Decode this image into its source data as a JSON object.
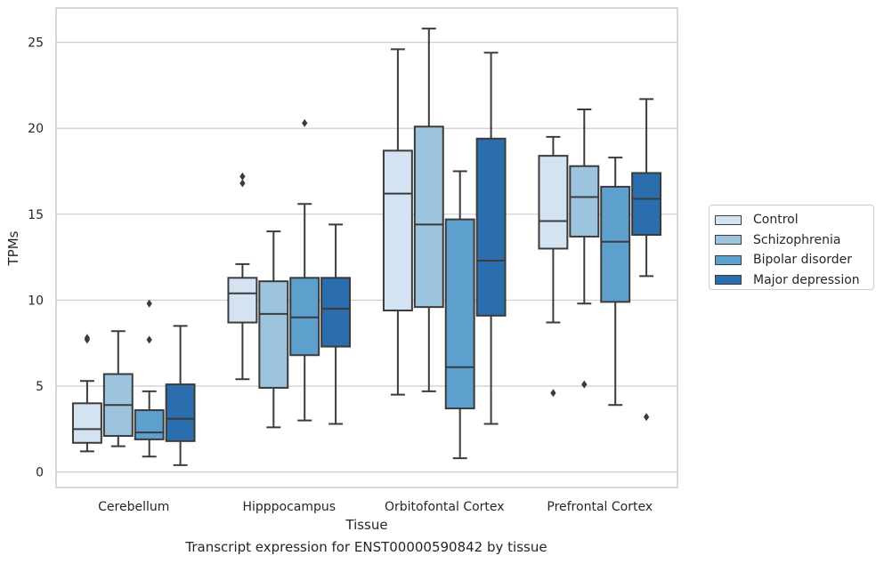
{
  "chart_data": {
    "type": "box",
    "title": "",
    "caption": "Transcript expression for ENST00000590842 by tissue",
    "xlabel": "Tissue",
    "ylabel": "TPMs",
    "ylim": [
      -0.9,
      27.0
    ],
    "yticks": [
      0,
      5,
      10,
      15,
      20,
      25
    ],
    "grid": "horizontal",
    "legend_position": "right",
    "categories": [
      "Cerebellum",
      "Hipppocampus",
      "Orbitofontal Cortex",
      "Prefrontal Cortex"
    ],
    "series": [
      {
        "name": "Control",
        "color": "#d4e3f2",
        "boxes": [
          {
            "whisker_low": 1.2,
            "q1": 1.7,
            "median": 2.5,
            "q3": 4.0,
            "whisker_high": 5.3,
            "outliers": [
              7.8,
              7.7
            ]
          },
          {
            "whisker_low": 5.4,
            "q1": 8.7,
            "median": 10.4,
            "q3": 11.3,
            "whisker_high": 12.1,
            "outliers": [
              16.8,
              17.2
            ]
          },
          {
            "whisker_low": 4.5,
            "q1": 9.4,
            "median": 16.2,
            "q3": 18.7,
            "whisker_high": 24.6,
            "outliers": []
          },
          {
            "whisker_low": 8.7,
            "q1": 13.0,
            "median": 14.6,
            "q3": 18.4,
            "whisker_high": 19.5,
            "outliers": [
              4.6
            ]
          }
        ]
      },
      {
        "name": "Schizophrenia",
        "color": "#9dc4df",
        "boxes": [
          {
            "whisker_low": 1.5,
            "q1": 2.1,
            "median": 3.9,
            "q3": 5.7,
            "whisker_high": 8.2,
            "outliers": []
          },
          {
            "whisker_low": 2.6,
            "q1": 4.9,
            "median": 9.2,
            "q3": 11.1,
            "whisker_high": 14.0,
            "outliers": []
          },
          {
            "whisker_low": 4.7,
            "q1": 9.6,
            "median": 14.4,
            "q3": 20.1,
            "whisker_high": 25.8,
            "outliers": []
          },
          {
            "whisker_low": 9.8,
            "q1": 13.7,
            "median": 16.0,
            "q3": 17.8,
            "whisker_high": 21.1,
            "outliers": [
              5.1
            ]
          }
        ]
      },
      {
        "name": "Bipolar disorder",
        "color": "#5da0cd",
        "boxes": [
          {
            "whisker_low": 0.9,
            "q1": 1.9,
            "median": 2.3,
            "q3": 3.6,
            "whisker_high": 4.7,
            "outliers": [
              9.8,
              7.7
            ]
          },
          {
            "whisker_low": 3.0,
            "q1": 6.8,
            "median": 9.0,
            "q3": 11.3,
            "whisker_high": 15.6,
            "outliers": [
              20.3
            ]
          },
          {
            "whisker_low": 0.8,
            "q1": 3.7,
            "median": 6.1,
            "q3": 14.7,
            "whisker_high": 17.5,
            "outliers": []
          },
          {
            "whisker_low": 3.9,
            "q1": 9.9,
            "median": 13.4,
            "q3": 16.6,
            "whisker_high": 18.3,
            "outliers": []
          }
        ]
      },
      {
        "name": "Major depression",
        "color": "#2b6eae",
        "boxes": [
          {
            "whisker_low": 0.4,
            "q1": 1.8,
            "median": 3.1,
            "q3": 5.1,
            "whisker_high": 8.5,
            "outliers": []
          },
          {
            "whisker_low": 2.8,
            "q1": 7.3,
            "median": 9.5,
            "q3": 11.3,
            "whisker_high": 14.4,
            "outliers": []
          },
          {
            "whisker_low": 2.8,
            "q1": 9.1,
            "median": 12.3,
            "q3": 19.4,
            "whisker_high": 24.4,
            "outliers": []
          },
          {
            "whisker_low": 11.4,
            "q1": 13.8,
            "median": 15.9,
            "q3": 17.4,
            "whisker_high": 21.7,
            "outliers": [
              3.2
            ]
          }
        ]
      }
    ]
  }
}
